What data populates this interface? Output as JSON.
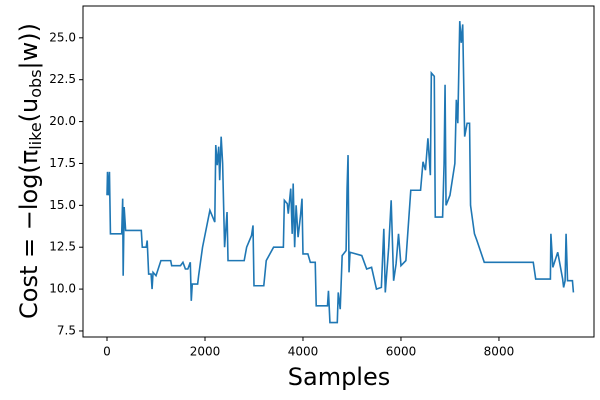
{
  "chart_data": {
    "type": "line",
    "xlabel": "Samples",
    "ylabel_parts": [
      "Cost = −log(π",
      "like",
      "(u",
      "obs",
      "|w))"
    ],
    "x": [
      0,
      10,
      30,
      50,
      70,
      300,
      320,
      330,
      350,
      380,
      700,
      720,
      800,
      820,
      850,
      900,
      920,
      940,
      1000,
      1100,
      1300,
      1320,
      1500,
      1550,
      1600,
      1650,
      1700,
      1720,
      1740,
      1850,
      1870,
      1950,
      2100,
      2200,
      2220,
      2250,
      2280,
      2300,
      2330,
      2360,
      2400,
      2450,
      2470,
      2800,
      2850,
      2950,
      2980,
      3000,
      3200,
      3250,
      3400,
      3600,
      3620,
      3680,
      3700,
      3750,
      3780,
      3800,
      3830,
      3860,
      3900,
      3950,
      3980,
      4000,
      4100,
      4150,
      4250,
      4270,
      4500,
      4520,
      4550,
      4700,
      4720,
      4760,
      4800,
      4880,
      4900,
      4920,
      4940,
      4960,
      5200,
      5300,
      5400,
      5500,
      5600,
      5620,
      5650,
      5680,
      5750,
      5800,
      5850,
      5900,
      5950,
      6000,
      6100,
      6200,
      6400,
      6450,
      6500,
      6550,
      6600,
      6620,
      6680,
      6700,
      6850,
      6880,
      6900,
      6920,
      7000,
      7100,
      7130,
      7160,
      7200,
      7230,
      7260,
      7300,
      7350,
      7400,
      7420,
      7500,
      7550,
      7700,
      8700,
      8750,
      9050,
      9060,
      9100,
      9200,
      9300,
      9320,
      9350,
      9370,
      9400,
      9500,
      9520
    ],
    "series": [
      {
        "color": "#1f77b4",
        "values": [
          15.6,
          17.0,
          15.6,
          17.0,
          13.3,
          13.3,
          15.4,
          10.8,
          14.9,
          13.5,
          13.5,
          12.5,
          12.5,
          12.9,
          10.9,
          10.9,
          10.0,
          11.0,
          10.8,
          11.7,
          11.7,
          11.4,
          11.4,
          11.6,
          11.2,
          11.2,
          11.6,
          9.3,
          10.3,
          10.3,
          10.8,
          12.5,
          14.7,
          14.0,
          18.6,
          17.4,
          18.5,
          16.5,
          19.1,
          17.5,
          12.5,
          14.6,
          11.7,
          11.7,
          12.5,
          13.2,
          13.8,
          10.2,
          10.2,
          11.7,
          12.5,
          12.5,
          15.3,
          15.1,
          14.5,
          16.0,
          13.3,
          16.3,
          12.5,
          15.0,
          13.1,
          14.4,
          15.4,
          12.1,
          12.1,
          11.6,
          11.6,
          9.0,
          9.0,
          9.9,
          8.0,
          8.0,
          9.8,
          8.8,
          12.0,
          12.3,
          16.0,
          18.0,
          11.0,
          12.2,
          12.0,
          11.2,
          11.3,
          10.0,
          10.1,
          11.5,
          13.6,
          9.8,
          12.5,
          15.3,
          10.5,
          11.5,
          13.3,
          11.4,
          11.7,
          15.9,
          15.9,
          17.6,
          17.1,
          19.0,
          16.8,
          22.9,
          22.7,
          14.3,
          14.3,
          17.5,
          22.2,
          15.0,
          15.6,
          17.5,
          21.3,
          19.9,
          26.0,
          24.7,
          25.8,
          19.1,
          19.9,
          19.9,
          15.0,
          13.3,
          12.9,
          11.6,
          11.6,
          10.6,
          10.6,
          13.3,
          11.3,
          12.2,
          10.6,
          10.1,
          10.5,
          13.3,
          10.5,
          10.5,
          9.8
        ]
      }
    ],
    "xlim": [
      -490,
      9940
    ],
    "ylim": [
      7.14,
      26.9
    ],
    "xticks": [
      0,
      2000,
      4000,
      6000,
      8000
    ],
    "yticks": [
      {
        "value": 7.5,
        "label": "7.5"
      },
      {
        "value": 10,
        "label": "10.0"
      },
      {
        "value": 12.5,
        "label": "12.5"
      },
      {
        "value": 15,
        "label": "15.0"
      },
      {
        "value": 17.5,
        "label": "17.5"
      },
      {
        "value": 20,
        "label": "20.0"
      },
      {
        "value": 22.5,
        "label": "22.5"
      },
      {
        "value": 25,
        "label": "25.0"
      }
    ]
  }
}
